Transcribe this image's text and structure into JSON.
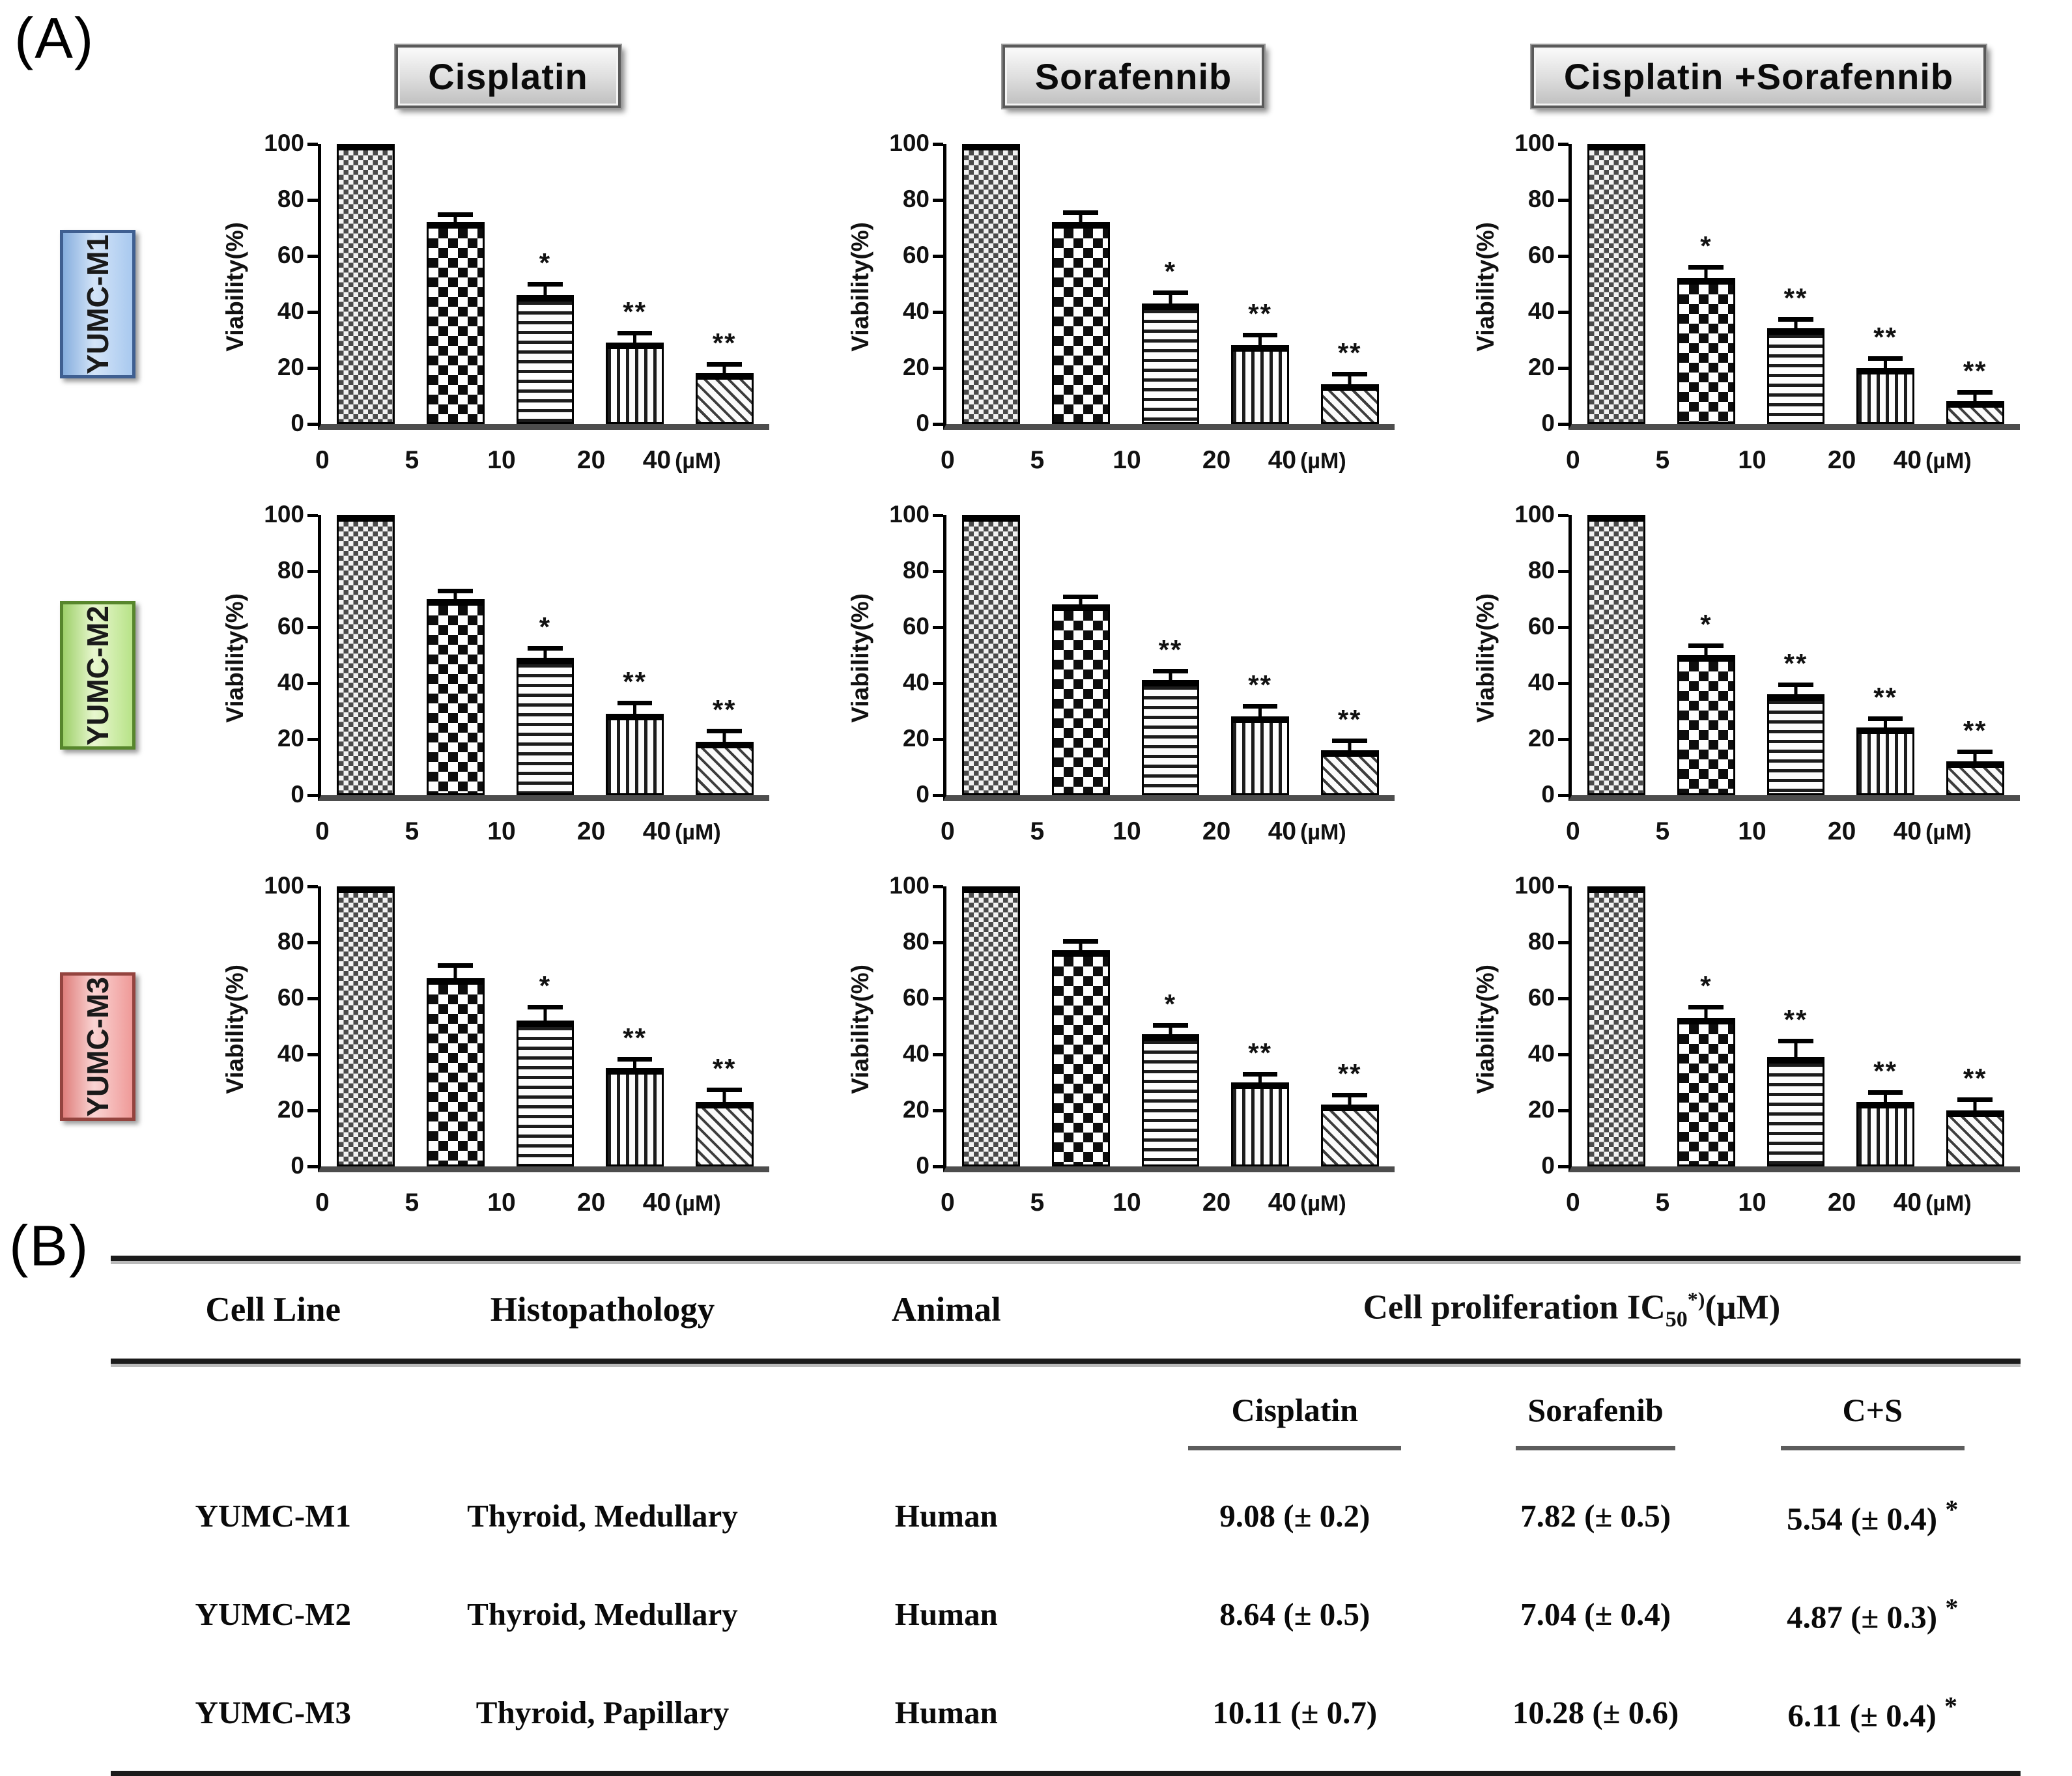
{
  "panel_a_label": "(A)",
  "panel_b_label": "(B)",
  "axis": {
    "ylabel": "Viability(%)",
    "yticks": [
      0,
      20,
      40,
      60,
      80,
      100
    ],
    "ylim": [
      0,
      100
    ],
    "xticks": [
      "0",
      "5",
      "10",
      "20",
      "40"
    ],
    "xunit": "(µM)",
    "patterns": [
      "fine-checker",
      "bold-checker",
      "horizontal-stripes",
      "vertical-stripes",
      "diagonal-hatch"
    ]
  },
  "col_titles": [
    "Cisplatin",
    "Sorafennib",
    "Cisplatin +Sorafennib"
  ],
  "row_labels": [
    {
      "name": "YUMC-M1",
      "fill1": "#86aede",
      "fill2": "#d3e4f8",
      "fill3": "#a9c9ef",
      "border": "#3f5f91"
    },
    {
      "name": "YUMC-M2",
      "fill1": "#9ed06a",
      "fill2": "#e8f7cf",
      "fill3": "#b8e388",
      "border": "#57862c"
    },
    {
      "name": "YUMC-M3",
      "fill1": "#df7f7c",
      "fill2": "#fad4d3",
      "fill3": "#ef9a98",
      "border": "#94443f"
    }
  ],
  "chart_data": [
    {
      "type": "bar",
      "row": "YUMC-M1",
      "treatment": "Cisplatin",
      "categories": [
        "0",
        "5",
        "10",
        "20",
        "40"
      ],
      "values": [
        100,
        72,
        46,
        29,
        18
      ],
      "errors": [
        0,
        1,
        2,
        1.5,
        1.5
      ],
      "sig": [
        "",
        "",
        "*",
        "**",
        "**"
      ],
      "ylabel": "Viability(%)",
      "ylim": [
        0,
        100
      ]
    },
    {
      "type": "bar",
      "row": "YUMC-M1",
      "treatment": "Sorafennib",
      "categories": [
        "0",
        "5",
        "10",
        "20",
        "40"
      ],
      "values": [
        100,
        72,
        43,
        28,
        14
      ],
      "errors": [
        0,
        1.5,
        2,
        2,
        2
      ],
      "sig": [
        "",
        "",
        "*",
        "**",
        "**"
      ],
      "ylabel": "Viability(%)",
      "ylim": [
        0,
        100
      ]
    },
    {
      "type": "bar",
      "row": "YUMC-M1",
      "treatment": "Cisplatin +Sorafennib",
      "categories": [
        "0",
        "5",
        "10",
        "20",
        "40"
      ],
      "values": [
        100,
        52,
        34,
        20,
        8
      ],
      "errors": [
        0,
        2,
        1.5,
        1.5,
        1.5
      ],
      "sig": [
        "",
        "*",
        "**",
        "**",
        "**"
      ],
      "ylabel": "Viability(%)",
      "ylim": [
        0,
        100
      ]
    },
    {
      "type": "bar",
      "row": "YUMC-M2",
      "treatment": "Cisplatin",
      "categories": [
        "0",
        "5",
        "10",
        "20",
        "40"
      ],
      "values": [
        100,
        70,
        49,
        29,
        19
      ],
      "errors": [
        0,
        1,
        1.5,
        2,
        2
      ],
      "sig": [
        "",
        "",
        "*",
        "**",
        "**"
      ],
      "ylabel": "Viability(%)",
      "ylim": [
        0,
        100
      ]
    },
    {
      "type": "bar",
      "row": "YUMC-M2",
      "treatment": "Sorafennib",
      "categories": [
        "0",
        "5",
        "10",
        "20",
        "40"
      ],
      "values": [
        100,
        68,
        41,
        28,
        16
      ],
      "errors": [
        0,
        1,
        1.5,
        2,
        1.5
      ],
      "sig": [
        "",
        "",
        "**",
        "**",
        "**"
      ],
      "ylabel": "Viability(%)",
      "ylim": [
        0,
        100
      ]
    },
    {
      "type": "bar",
      "row": "YUMC-M2",
      "treatment": "Cisplatin +Sorafennib",
      "categories": [
        "0",
        "5",
        "10",
        "20",
        "40"
      ],
      "values": [
        100,
        50,
        36,
        24,
        12
      ],
      "errors": [
        0,
        1.5,
        1.5,
        1.5,
        1.5
      ],
      "sig": [
        "",
        "*",
        "**",
        "**",
        "**"
      ],
      "ylabel": "Viability(%)",
      "ylim": [
        0,
        100
      ]
    },
    {
      "type": "bar",
      "row": "YUMC-M3",
      "treatment": "Cisplatin",
      "categories": [
        "0",
        "5",
        "10",
        "20",
        "40"
      ],
      "values": [
        100,
        67,
        52,
        35,
        23
      ],
      "errors": [
        0,
        3,
        3,
        1.5,
        2.5
      ],
      "sig": [
        "",
        "",
        "*",
        "**",
        "**"
      ],
      "ylabel": "Viability(%)",
      "ylim": [
        0,
        100
      ]
    },
    {
      "type": "bar",
      "row": "YUMC-M3",
      "treatment": "Sorafennib",
      "categories": [
        "0",
        "5",
        "10",
        "20",
        "40"
      ],
      "values": [
        100,
        77,
        47,
        30,
        22
      ],
      "errors": [
        0,
        1.5,
        1.5,
        1,
        1.5
      ],
      "sig": [
        "",
        "",
        "*",
        "**",
        "**"
      ],
      "ylabel": "Viability(%)",
      "ylim": [
        0,
        100
      ]
    },
    {
      "type": "bar",
      "row": "YUMC-M3",
      "treatment": "Cisplatin +Sorafennib",
      "categories": [
        "0",
        "5",
        "10",
        "20",
        "40"
      ],
      "values": [
        100,
        53,
        39,
        23,
        20
      ],
      "errors": [
        0,
        2,
        4,
        1.5,
        2
      ],
      "sig": [
        "",
        "*",
        "**",
        "**",
        "**"
      ],
      "ylabel": "Viability(%)",
      "ylim": [
        0,
        100
      ]
    }
  ],
  "table": {
    "headers": {
      "cell_line": "Cell Line",
      "histopathology": "Histopathology",
      "animal": "Animal",
      "group_prefix": "Cell proliferation  IC",
      "group_sub": "50",
      "group_sup": "*)",
      "group_unit": "(µM)"
    },
    "subheaders": [
      "Cisplatin",
      "Sorafenib",
      "C+S"
    ],
    "rows": [
      {
        "cell_line": "YUMC-M1",
        "histopathology": "Thyroid,  Medullary",
        "animal": "Human",
        "cisplatin": "9.08 (± 0.2)",
        "sorafenib": "7.82 (± 0.5)",
        "cs": "5.54  (± 0.4)",
        "cs_star": "*"
      },
      {
        "cell_line": "YUMC-M2",
        "histopathology": "Thyroid,  Medullary",
        "animal": "Human",
        "cisplatin": "8.64 (± 0.5)",
        "sorafenib": "7.04 (± 0.4)",
        "cs": "4.87  (± 0.3)",
        "cs_star": "*"
      },
      {
        "cell_line": "YUMC-M3",
        "histopathology": "Thyroid,  Papillary",
        "animal": "Human",
        "cisplatin": "10.11 (± 0.7)",
        "sorafenib": "10.28 (± 0.6)",
        "cs": "6.11  (± 0.4)",
        "cs_star": "*"
      }
    ]
  }
}
